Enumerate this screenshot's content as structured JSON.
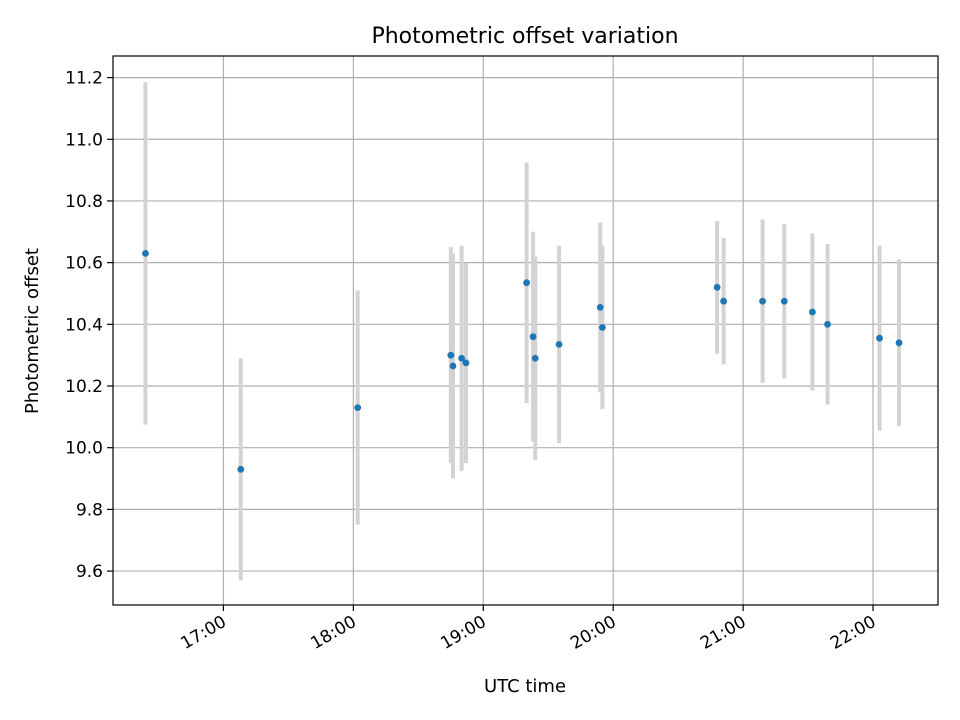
{
  "chart_data": {
    "type": "scatter",
    "title": "Photometric offset variation",
    "xlabel": "UTC time",
    "ylabel": "Photometric offset",
    "xlim": [
      "16:09",
      "22:30"
    ],
    "ylim": [
      9.49,
      11.27
    ],
    "xticks": [
      "17:00",
      "18:00",
      "19:00",
      "20:00",
      "21:00",
      "22:00"
    ],
    "yticks": [
      "9.6",
      "9.8",
      "10.0",
      "10.2",
      "10.4",
      "10.6",
      "10.8",
      "11.0",
      "11.2"
    ],
    "grid": true,
    "colors": {
      "point": "#1f77b4",
      "errorbar": "#d3d3d3"
    },
    "series": [
      {
        "points": [
          {
            "x": "16:24",
            "y": 10.63,
            "yerr": 0.555
          },
          {
            "x": "17:08",
            "y": 9.93,
            "yerr": 0.36
          },
          {
            "x": "18:02",
            "y": 10.13,
            "yerr": 0.38
          },
          {
            "x": "18:45",
            "y": 10.3,
            "yerr": 0.35
          },
          {
            "x": "18:46",
            "y": 10.265,
            "yerr": 0.365
          },
          {
            "x": "18:50",
            "y": 10.29,
            "yerr": 0.365
          },
          {
            "x": "18:52",
            "y": 10.275,
            "yerr": 0.325
          },
          {
            "x": "19:20",
            "y": 10.535,
            "yerr": 0.39
          },
          {
            "x": "19:23",
            "y": 10.36,
            "yerr": 0.34
          },
          {
            "x": "19:24",
            "y": 10.29,
            "yerr": 0.33
          },
          {
            "x": "19:35",
            "y": 10.335,
            "yerr": 0.32
          },
          {
            "x": "19:54",
            "y": 10.455,
            "yerr": 0.275
          },
          {
            "x": "19:55",
            "y": 10.39,
            "yerr": 0.265
          },
          {
            "x": "20:48",
            "y": 10.52,
            "yerr": 0.215
          },
          {
            "x": "20:51",
            "y": 10.475,
            "yerr": 0.205
          },
          {
            "x": "21:09",
            "y": 10.475,
            "yerr": 0.265
          },
          {
            "x": "21:19",
            "y": 10.475,
            "yerr": 0.25
          },
          {
            "x": "21:32",
            "y": 10.44,
            "yerr": 0.255
          },
          {
            "x": "21:39",
            "y": 10.4,
            "yerr": 0.26
          },
          {
            "x": "22:03",
            "y": 10.355,
            "yerr": 0.3
          },
          {
            "x": "22:12",
            "y": 10.34,
            "yerr": 0.27
          }
        ]
      }
    ]
  }
}
